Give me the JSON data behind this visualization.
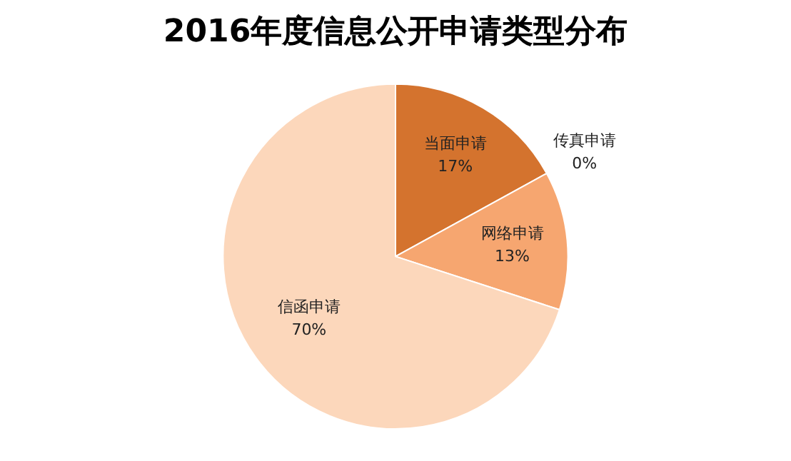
{
  "chart_data": {
    "type": "pie",
    "title": "2016年度信息公开申请类型分布",
    "categories": [
      "当面申请",
      "传真申请",
      "网络申请",
      "信函申请"
    ],
    "values": [
      17,
      0,
      13,
      70
    ],
    "value_labels": [
      "17%",
      "0%",
      "13%",
      "70%"
    ],
    "colors": [
      "#d4732e",
      "#e8956a",
      "#f6a670",
      "#fcd7bb"
    ],
    "legend": false
  }
}
